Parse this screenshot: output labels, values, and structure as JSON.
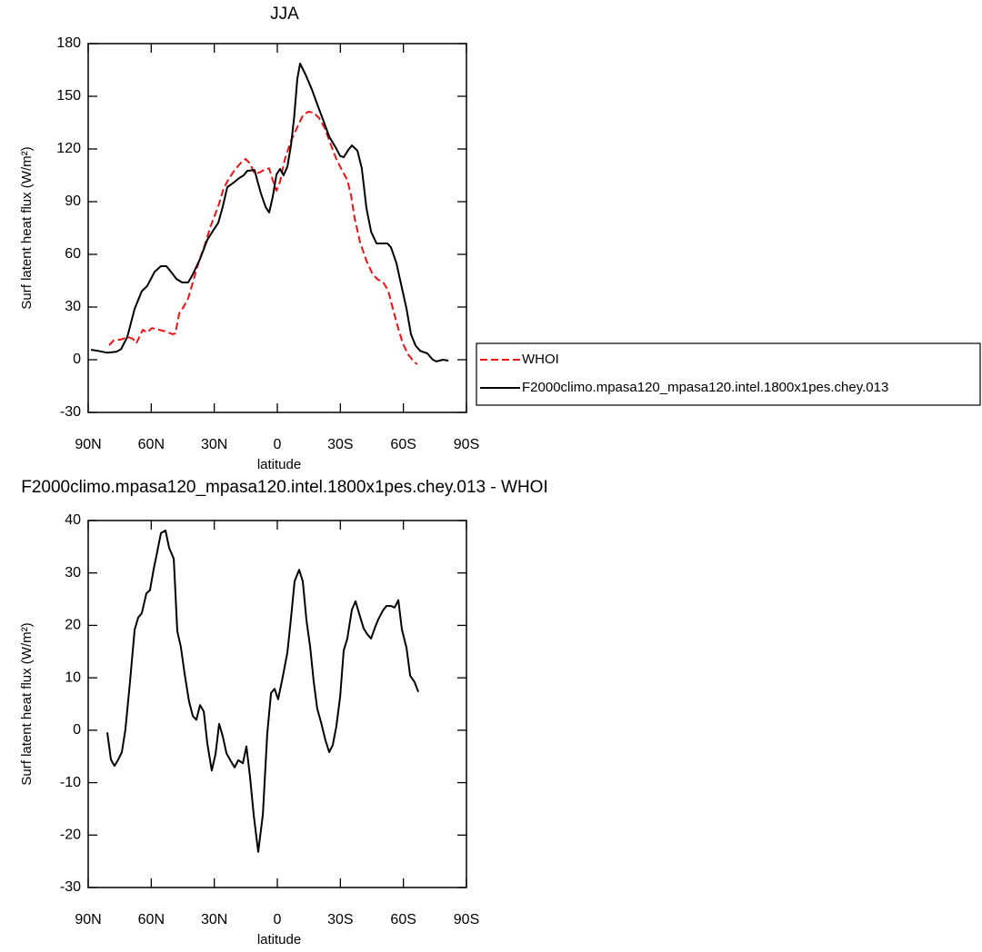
{
  "chart_data": [
    {
      "type": "line",
      "title": "JJA",
      "xlabel": "latitude",
      "ylabel": "Surf latent heat flux (W/m²)",
      "xlim": [
        90,
        -90
      ],
      "xticks": [
        {
          "value": 90,
          "label": "90N"
        },
        {
          "value": 60,
          "label": "60N"
        },
        {
          "value": 30,
          "label": "30N"
        },
        0,
        {
          "value": -30,
          "label": "30S"
        },
        {
          "value": -60,
          "label": "60S"
        },
        {
          "value": -90,
          "label": "90S"
        }
      ],
      "ylim": [
        -30,
        180
      ],
      "yticks": [
        -30,
        0,
        30,
        60,
        90,
        120,
        150,
        180
      ],
      "legend": "right",
      "series": [
        {
          "name": "WHOI",
          "color": "#ee1111",
          "dash": "dashed",
          "x": [
            80,
            77.9,
            74.4,
            71.4,
            68.8,
            67.1,
            64.0,
            61.9,
            59.7,
            56.2,
            52.8,
            49.8,
            48.5,
            46.7,
            44.6,
            42.4,
            40.2,
            37.6,
            34.6,
            31.6,
            28.1,
            25.5,
            22.9,
            20.3,
            17.3,
            15.1,
            13.0,
            10.8,
            8.7,
            6.5,
            3.9,
            2.2,
            0.4,
            -1.3,
            -3.5,
            -6.5,
            -9.5,
            -12.1,
            -14.7,
            -17.3,
            -19.9,
            -22.5,
            -25.1,
            -28.1,
            -30.7,
            -33.3,
            -35.1,
            -36.8,
            -39.4,
            -42.4,
            -45.4,
            -48.0,
            -50.2,
            -52.8,
            -55.0,
            -57.1,
            -59.7,
            -62.3,
            -64.9,
            -66.6
          ],
          "values": [
            8.2,
            11,
            11.5,
            13,
            12,
            9.3,
            17,
            15.5,
            18,
            17,
            16,
            14.5,
            15,
            26.4,
            30,
            35,
            44,
            54.8,
            65,
            76.5,
            87.4,
            97.7,
            103.4,
            108,
            112.2,
            114.3,
            111.7,
            106,
            106.5,
            108,
            109,
            102.4,
            96.2,
            101.4,
            113.8,
            124.6,
            132.4,
            139,
            141.2,
            140.7,
            137.6,
            132,
            123.6,
            114.3,
            108,
            102.4,
            93.6,
            80.7,
            66.7,
            56.4,
            48.6,
            45.5,
            44.5,
            39.3,
            29,
            19.6,
            9.3,
            3,
            -1,
            -2.6
          ]
        },
        {
          "name": "F2000climo.mpasa120_mpasa120.intel.1800x1pes.chey.013",
          "color": "#000000",
          "dash": "solid",
          "x": [
            88.7,
            85.2,
            80.9,
            76.6,
            74.4,
            71.4,
            67.9,
            64.5,
            61.9,
            58.4,
            55.4,
            52.8,
            50.6,
            48.0,
            45.4,
            42.4,
            40.2,
            36.8,
            33.3,
            30.3,
            28.1,
            26.0,
            23.8,
            20.8,
            18.2,
            16.0,
            14.3,
            10.8,
            9.5,
            7.8,
            5.6,
            3.9,
            2.2,
            0.4,
            -1.3,
            -3.0,
            -4.8,
            -6.5,
            -8.0,
            -9.5,
            -10.8,
            -13.4,
            -16.4,
            -19.5,
            -22.1,
            -24.7,
            -27.7,
            -29.9,
            -31.6,
            -33.8,
            -35.5,
            -38.1,
            -40.2,
            -42.4,
            -44.6,
            -47.2,
            -50.2,
            -52.4,
            -54.1,
            -56.7,
            -58.9,
            -61.5,
            -63.6,
            -65.8,
            -68.0,
            -71.4,
            -74.0,
            -75.7,
            -78.8,
            -81.4
          ],
          "values": [
            5.7,
            5,
            4,
            4.5,
            6,
            13,
            29,
            39,
            42,
            50,
            53.3,
            53.3,
            50,
            46,
            44,
            44,
            48.6,
            57.4,
            68.3,
            74,
            78,
            87,
            98.3,
            100.8,
            103.4,
            105,
            107.6,
            108,
            102,
            94.6,
            87,
            83.8,
            92.6,
            105.5,
            108.6,
            105,
            110,
            122,
            138,
            160,
            168.6,
            162.4,
            154,
            143.8,
            135.5,
            127,
            121,
            116,
            115.3,
            119.5,
            122,
            119,
            109,
            86.4,
            73,
            66.2,
            66.2,
            66.2,
            64,
            55,
            43,
            29,
            14.5,
            8,
            5,
            3.6,
            0,
            -1,
            0,
            -0.5
          ]
        }
      ]
    },
    {
      "type": "line",
      "title": "F2000climo.mpasa120_mpasa120.intel.1800x1pes.chey.013 - WHOI",
      "xlabel": "latitude",
      "ylabel": "Surf latent heat flux (W/m²)",
      "xlim": [
        90,
        -90
      ],
      "xticks": [
        {
          "value": 90,
          "label": "90N"
        },
        {
          "value": 60,
          "label": "60N"
        },
        {
          "value": 30,
          "label": "30N"
        },
        0,
        {
          "value": -30,
          "label": "30S"
        },
        {
          "value": -60,
          "label": "60S"
        },
        {
          "value": -90,
          "label": "90S"
        }
      ],
      "ylim": [
        -30,
        40
      ],
      "yticks": [
        -30,
        -20,
        -10,
        0,
        10,
        20,
        30,
        40
      ],
      "series": [
        {
          "color": "#000000",
          "dash": "solid",
          "x": [
            80.9,
            79.2,
            77.5,
            75.7,
            74.0,
            72.3,
            70.1,
            67.9,
            66.2,
            64.5,
            62.3,
            60.6,
            58.8,
            57.1,
            55.4,
            53.2,
            51.5,
            49.3,
            47.6,
            45.9,
            44.1,
            42.0,
            40.2,
            38.5,
            36.8,
            35.0,
            33.3,
            31.2,
            29.4,
            27.7,
            26.0,
            24.2,
            22.1,
            20.3,
            18.6,
            16.4,
            14.7,
            13.0,
            11.2,
            9.1,
            6.9,
            4.8,
            3.0,
            1.3,
            -0.4,
            -2.6,
            -4.8,
            -6.5,
            -8.2,
            -10.4,
            -12.1,
            -13.9,
            -15.6,
            -17.3,
            -19.0,
            -20.8,
            -22.9,
            -24.7,
            -26.4,
            -28.1,
            -29.9,
            -31.6,
            -33.3,
            -35.5,
            -37.2,
            -38.9,
            -41.1,
            -42.8,
            -44.6,
            -46.3,
            -48.0,
            -50.2,
            -51.9,
            -54.1,
            -55.8,
            -57.6,
            -59.3,
            -61.5,
            -63.2,
            -65.3,
            -67.1
          ],
          "values": [
            -0.4,
            -5.6,
            -6.8,
            -5.6,
            -4.2,
            0.1,
            9.3,
            19.2,
            21.5,
            22.3,
            26.1,
            26.7,
            30.8,
            34.1,
            37.6,
            38.1,
            34.8,
            32.7,
            18.9,
            15.9,
            10.7,
            5.5,
            2.7,
            2,
            4.8,
            3.6,
            -2.5,
            -7.7,
            -4.5,
            1.2,
            -1.1,
            -4.4,
            -5.9,
            -7.1,
            -5.7,
            -6.3,
            -3.1,
            -8.9,
            -16.3,
            -23.2,
            -16.1,
            -0.7,
            7.1,
            7.9,
            5.9,
            10.2,
            14.9,
            21.3,
            28.4,
            30.6,
            28.4,
            20.9,
            15.9,
            9.3,
            4.1,
            1.5,
            -1.9,
            -4.2,
            -2.8,
            0.7,
            6.4,
            15.2,
            17.5,
            23,
            24.6,
            22.3,
            19.4,
            18.3,
            17.5,
            19.4,
            21.1,
            22.8,
            23.7,
            23.7,
            23.4,
            24.8,
            19.2,
            15.7,
            10.4,
            9.2,
            7.3
          ]
        }
      ]
    }
  ]
}
